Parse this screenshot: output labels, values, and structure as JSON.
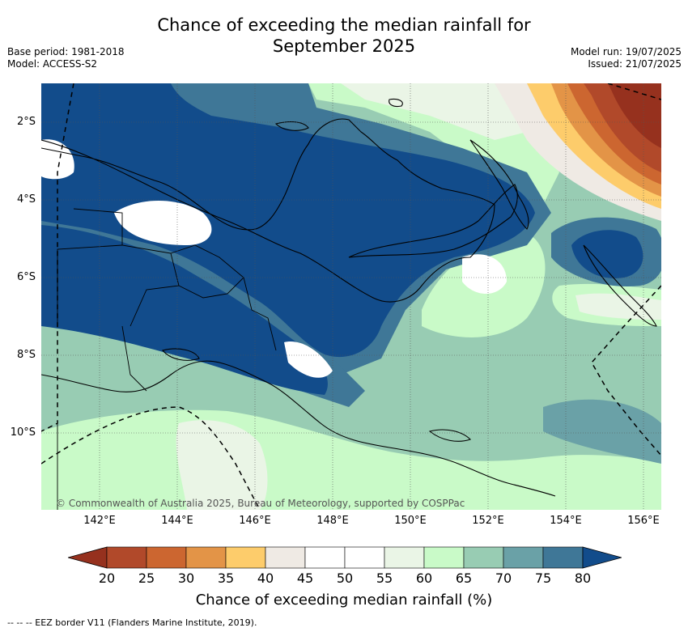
{
  "title_line1": "Chance of exceeding the median rainfall for",
  "title_line2": "September 2025",
  "meta": {
    "base_period": "Base period: 1981-2018",
    "model": "Model: ACCESS-S2",
    "model_run": "Model run: 19/07/2025",
    "issued": "Issued: 21/07/2025"
  },
  "map": {
    "lat_ticks": [
      "2°S",
      "4°S",
      "6°S",
      "8°S",
      "10°S"
    ],
    "lon_ticks": [
      "142°E",
      "144°E",
      "146°E",
      "148°E",
      "150°E",
      "152°E",
      "154°E",
      "156°E"
    ],
    "credit": "© Commonwealth of Australia 2025, Bureau of Meteorology, supported by COSPPac",
    "colors": {
      "lt35": "#f5c76a",
      "c40": "#efeae4",
      "c45": "#ffffff",
      "c55": "#eaf5e6",
      "c60": "#c9fac8",
      "c65": "#98ccb3",
      "c70": "#6aa1a7",
      "c75": "#3f7797",
      "gt80": "#124c8b",
      "dry20": "#96311e",
      "dry25": "#b1492a",
      "dry30": "#cc6630",
      "dry35": "#e39447"
    }
  },
  "colorbar": {
    "labels": [
      "20",
      "25",
      "30",
      "35",
      "40",
      "45",
      "50",
      "55",
      "60",
      "65",
      "70",
      "75",
      "80"
    ],
    "colors": [
      "#b1492a",
      "#cc6630",
      "#e39447",
      "#fdcc6b",
      "#efeae4",
      "#ffffff",
      "#ffffff",
      "#eaf5e6",
      "#c9fac8",
      "#98ccb3",
      "#6aa1a7",
      "#3f7797"
    ],
    "low_extend_color": "#96311e",
    "high_extend_color": "#124c8b",
    "title": "Chance of exceeding median rainfall (%)"
  },
  "footer": "--  --  -- EEZ border V11 (Flanders Marine Institute, 2019)."
}
